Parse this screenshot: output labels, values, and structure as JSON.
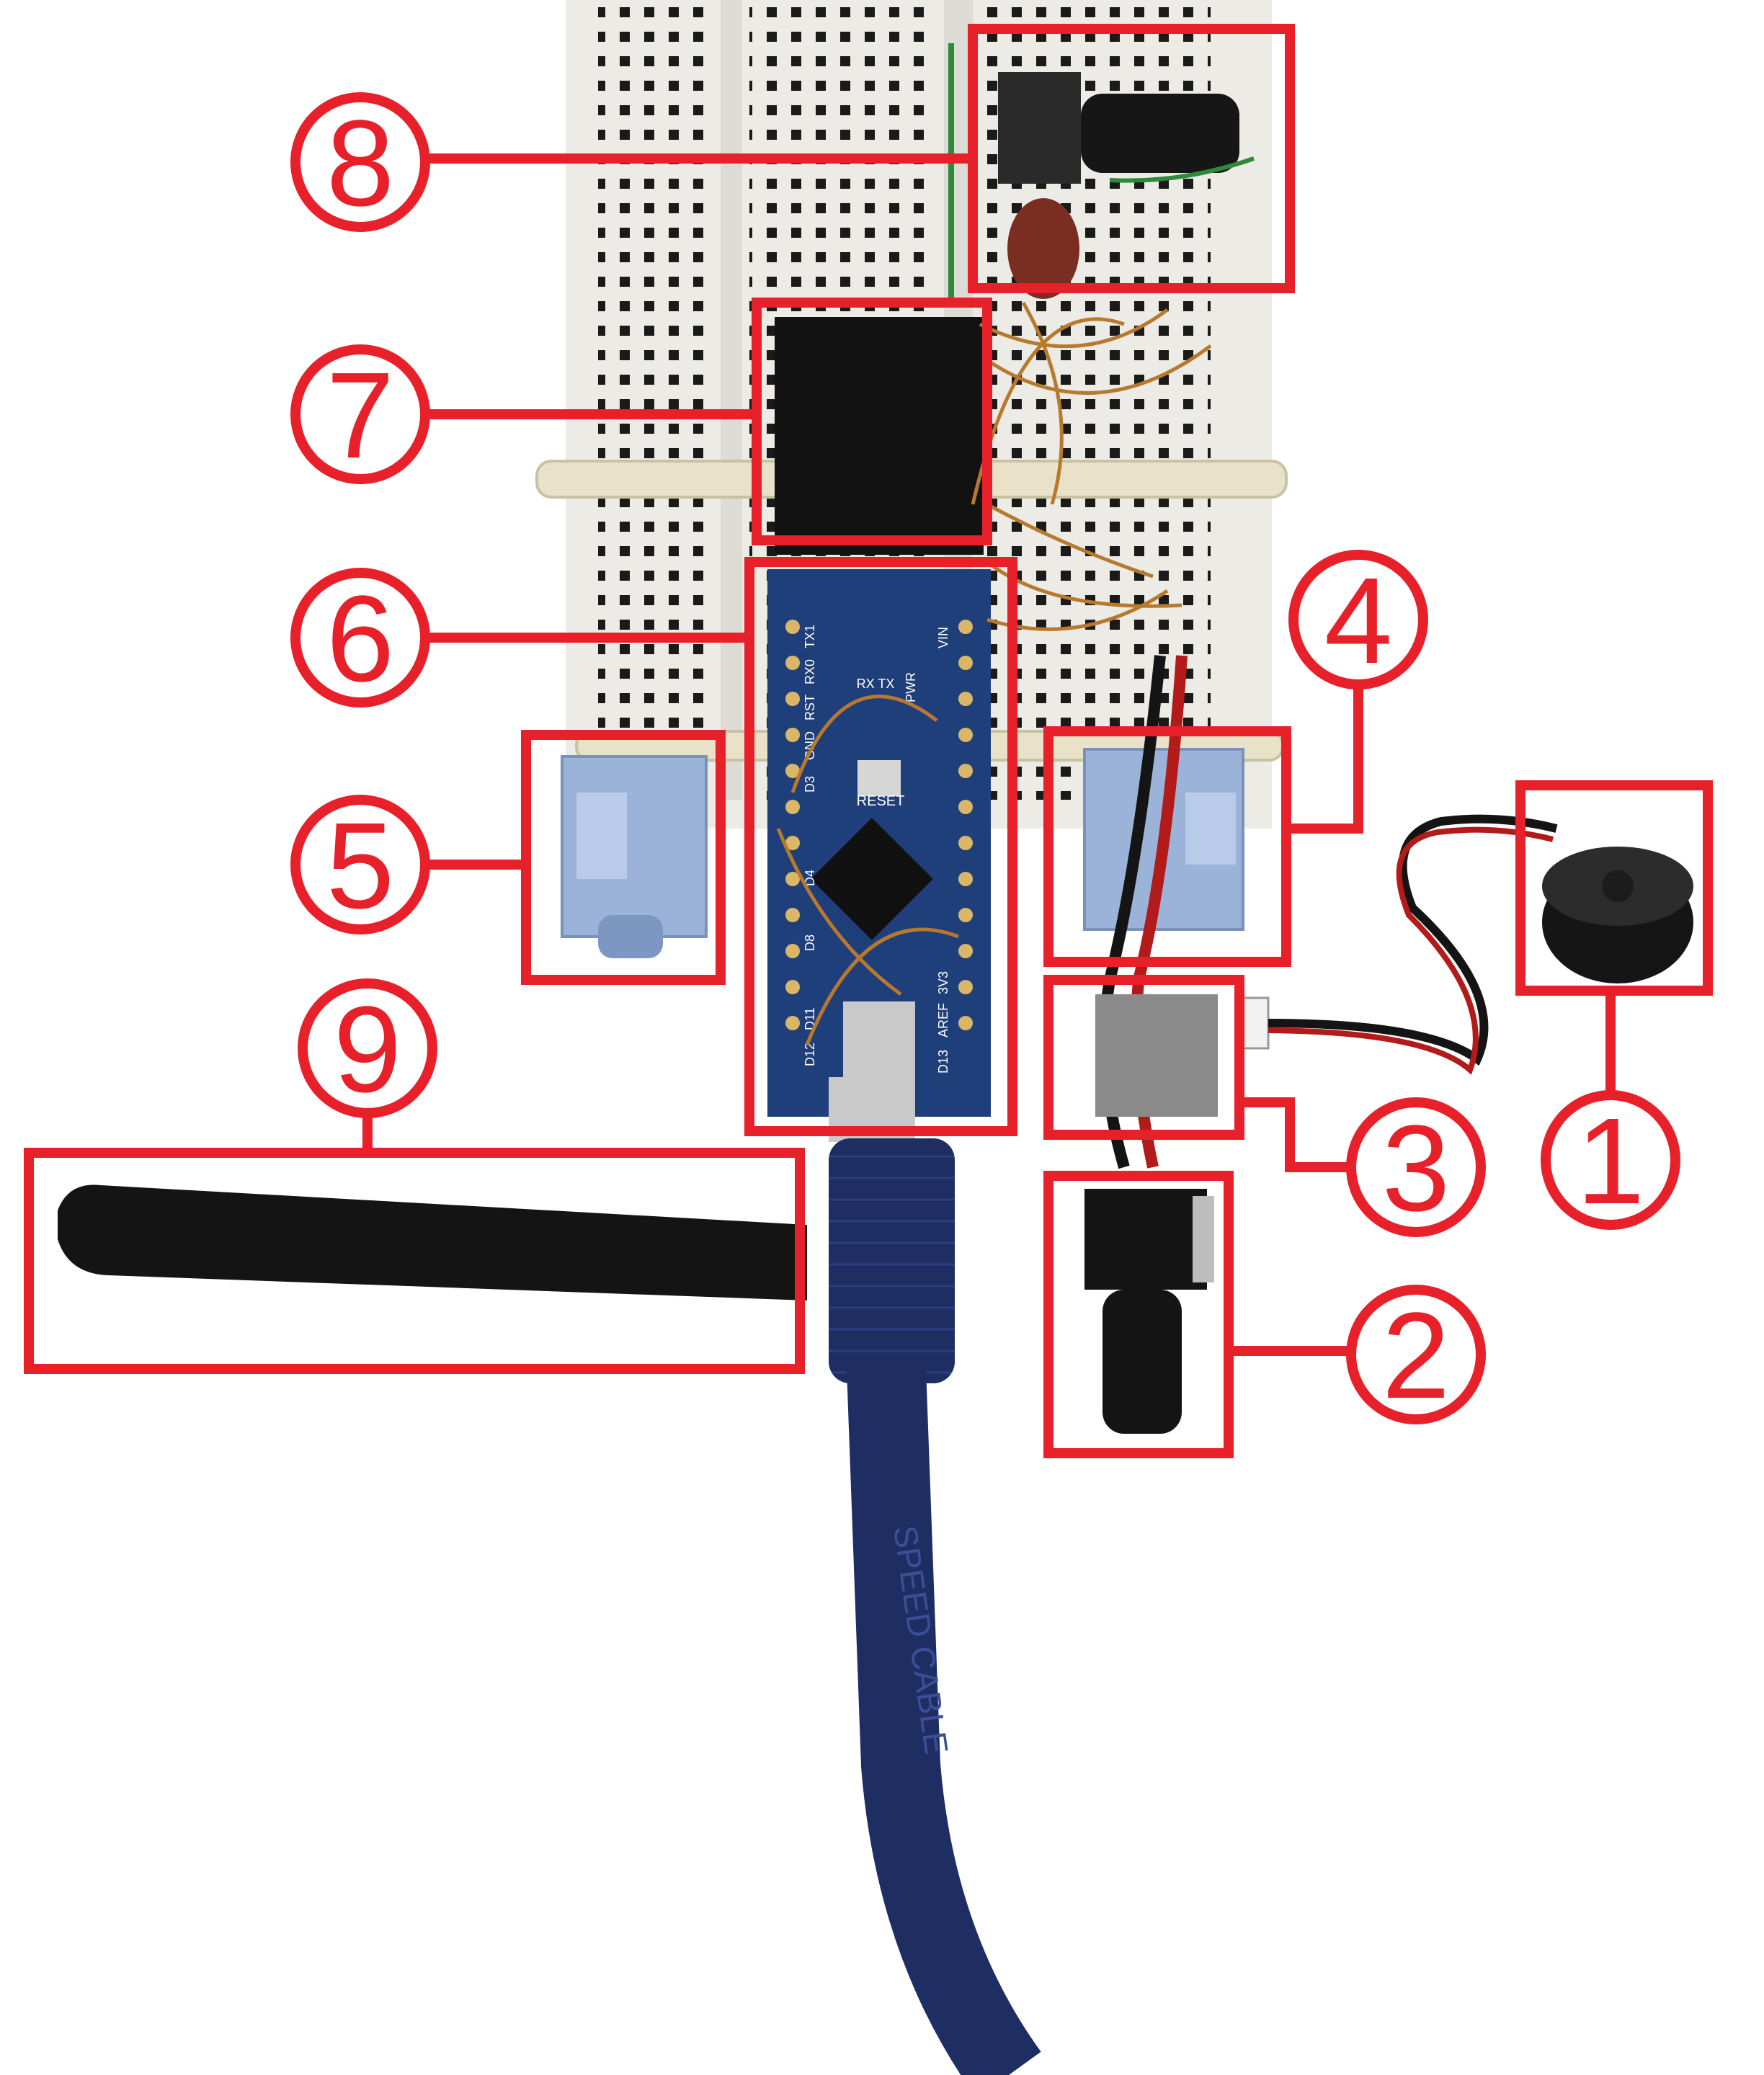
{
  "colors": {
    "annotation_red": "#e8202a",
    "breadboard": "#ecebe5",
    "arduino_blue": "#1f3f7a",
    "cable_blue": "#1e2e63",
    "jack_blue": "#9bb3d8",
    "black_part": "#161616",
    "copper_wire": "#b8792e",
    "zip_tie": "#e9e2c8"
  },
  "callouts": [
    {
      "label": "1"
    },
    {
      "label": "2"
    },
    {
      "label": "3"
    },
    {
      "label": "4"
    },
    {
      "label": "5"
    },
    {
      "label": "6"
    },
    {
      "label": "7"
    },
    {
      "label": "8"
    },
    {
      "label": "9"
    }
  ],
  "board_text": {
    "reset": "RESET",
    "tx1": "TX1",
    "rx0": "RX0",
    "rst": "RST",
    "gnd": "GND",
    "vin": "VIN",
    "d13": "D13",
    "d12": "D12",
    "d11": "D11",
    "aref": "AREF",
    "ref3v3": "3V3",
    "pwr": "PWR",
    "rxtx": "RX TX",
    "d8": "D8",
    "d4": "D4",
    "d3": "D3"
  },
  "cable_text": "SPEED CABLE"
}
